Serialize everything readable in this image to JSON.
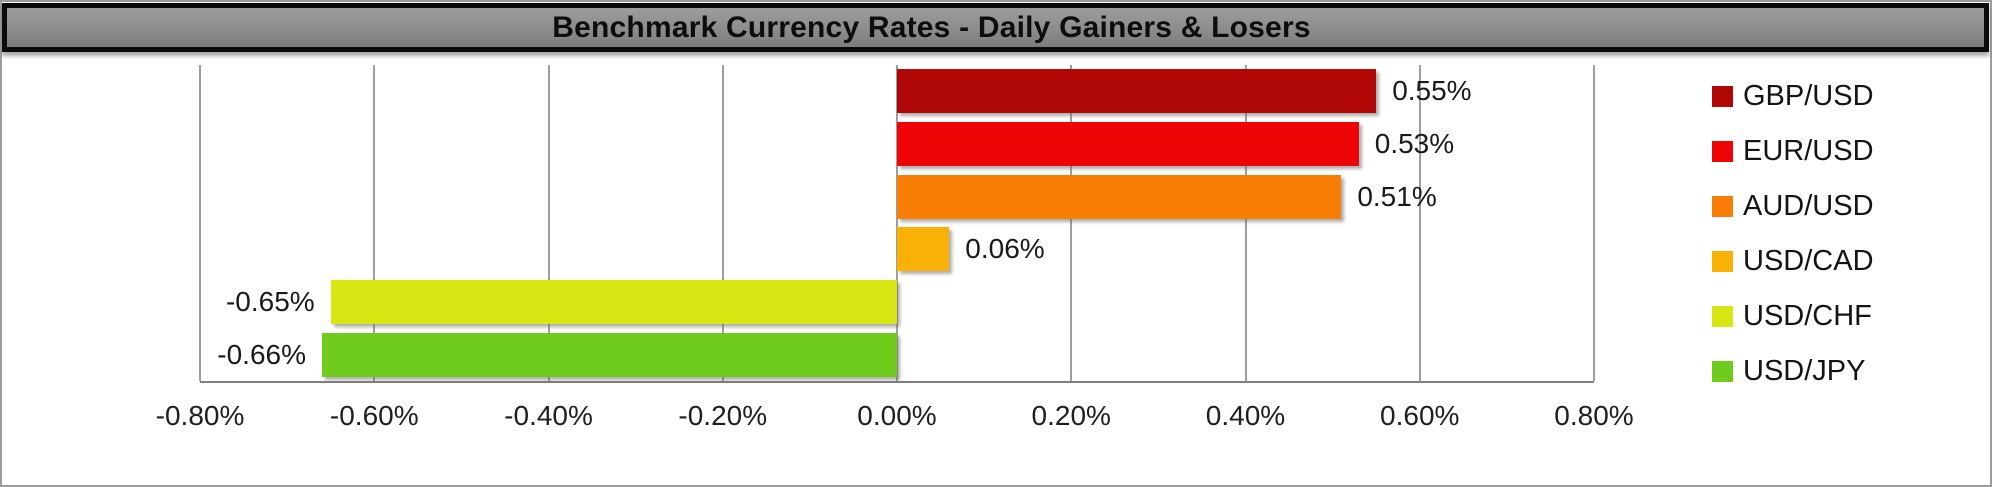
{
  "title": "Benchmark Currency Rates - Daily Gainers & Losers",
  "chart_data": {
    "type": "bar",
    "orientation": "horizontal",
    "title": "Benchmark Currency Rates - Daily Gainers & Losers",
    "categories": [
      "GBP/USD",
      "EUR/USD",
      "AUD/USD",
      "USD/CAD",
      "USD/CHF",
      "USD/JPY"
    ],
    "values": [
      0.55,
      0.53,
      0.51,
      0.06,
      -0.65,
      -0.66
    ],
    "value_labels": [
      "0.55%",
      "0.53%",
      "0.51%",
      "0.06%",
      "-0.65%",
      "-0.66%"
    ],
    "bar_colors": [
      "#B00707",
      "#EE0404",
      "#F87E06",
      "#FAB105",
      "#D7E713",
      "#6FCB1C"
    ],
    "xlabel": "",
    "ylabel": "",
    "xlim": [
      -0.8,
      0.8
    ],
    "xticks": [
      -0.8,
      -0.6,
      -0.4,
      -0.2,
      0,
      0.2,
      0.4,
      0.6,
      0.8
    ],
    "xtick_labels": [
      "-0.80%",
      "-0.60%",
      "-0.40%",
      "-0.20%",
      "0.00%",
      "0.20%",
      "0.40%",
      "0.60%",
      "0.80%"
    ],
    "grid": true,
    "legend_position": "right"
  },
  "legend": {
    "items": [
      {
        "label": "GBP/USD",
        "color": "#B00707"
      },
      {
        "label": "EUR/USD",
        "color": "#EE0404"
      },
      {
        "label": "AUD/USD",
        "color": "#F87E06"
      },
      {
        "label": "USD/CAD",
        "color": "#FAB105"
      },
      {
        "label": "USD/CHF",
        "color": "#D7E713"
      },
      {
        "label": "USD/JPY",
        "color": "#6FCB1C"
      }
    ]
  },
  "colors": {
    "title_bar_fill": "#8C8C8C",
    "title_bar_border": "#0B0B0B",
    "gridline": "#9E9E9E",
    "axis_line": "#7F7F7F",
    "frame_border": "#9C9C9C",
    "label_text": "#1A1A1A",
    "background": "#FFFFFF"
  }
}
